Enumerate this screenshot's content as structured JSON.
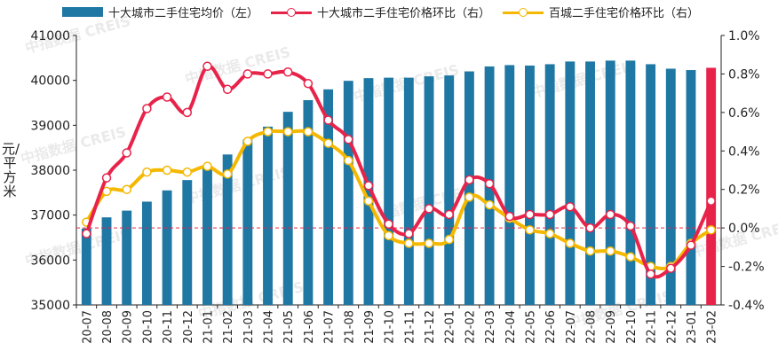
{
  "legend": {
    "series1": "十大城市二手住宅均价（左）",
    "series2": "十大城市二手住宅价格环比（右）",
    "series3": "百城二手住宅价格环比（右）"
  },
  "watermark": "中指数据 CREIS",
  "colors": {
    "bar": "#1f78a4",
    "bar_highlight": "#e8234a",
    "line_ten": "#e8234a",
    "line_hundred": "#f5b800",
    "zero_line": "#e8234a"
  },
  "chart_data": {
    "type": "bar",
    "categories": [
      "20-07",
      "20-08",
      "20-09",
      "20-10",
      "20-11",
      "20-12",
      "21-01",
      "21-02",
      "21-03",
      "21-04",
      "21-05",
      "21-06",
      "21-07",
      "21-08",
      "21-09",
      "21-10",
      "21-11",
      "21-12",
      "22-01",
      "22-02",
      "22-03",
      "22-04",
      "22-05",
      "22-06",
      "22-07",
      "22-08",
      "22-09",
      "22-10",
      "22-11",
      "22-12",
      "23-01",
      "23-02"
    ],
    "ylabel": "元/平方米",
    "ylim": [
      35000,
      41000
    ],
    "y_ticks": [
      "41000",
      "40000",
      "39000",
      "38000",
      "37000",
      "36000",
      "35000"
    ],
    "y2lim": [
      -0.4,
      1.0
    ],
    "y2_ticks": [
      "1.0%",
      "0.8%",
      "0.6%",
      "0.4%",
      "0.2%",
      "0.0%",
      "-0.2%",
      "-0.4%"
    ],
    "highlight_last_bar": true,
    "series": [
      {
        "name": "十大城市二手住宅均价（左）",
        "type": "bar",
        "axis": "left",
        "values": [
          36700,
          36950,
          37100,
          37300,
          37550,
          37780,
          38040,
          38350,
          38680,
          38970,
          39300,
          39560,
          39800,
          39990,
          40050,
          40060,
          40060,
          40090,
          40110,
          40200,
          40310,
          40340,
          40330,
          40360,
          40420,
          40420,
          40440,
          40440,
          40360,
          40260,
          40230,
          40280
        ]
      },
      {
        "name": "十大城市二手住宅价格环比（右）",
        "type": "line",
        "axis": "right",
        "values": [
          -0.03,
          0.26,
          0.39,
          0.62,
          0.68,
          0.6,
          0.84,
          0.72,
          0.8,
          0.8,
          0.81,
          0.75,
          0.56,
          0.46,
          0.22,
          0.02,
          -0.03,
          0.1,
          0.07,
          0.25,
          0.23,
          0.06,
          0.07,
          0.07,
          0.11,
          0.0,
          0.07,
          0.01,
          -0.24,
          -0.21,
          -0.09,
          0.14
        ]
      },
      {
        "name": "百城二手住宅价格环比（右）",
        "type": "line",
        "axis": "right",
        "values": [
          0.03,
          0.19,
          0.2,
          0.29,
          0.3,
          0.29,
          0.32,
          0.28,
          0.45,
          0.5,
          0.5,
          0.5,
          0.44,
          0.35,
          0.14,
          -0.04,
          -0.08,
          -0.08,
          -0.06,
          0.16,
          0.12,
          0.05,
          -0.01,
          -0.03,
          -0.08,
          -0.12,
          -0.12,
          -0.15,
          -0.2,
          -0.2,
          -0.08,
          -0.01
        ]
      }
    ]
  }
}
